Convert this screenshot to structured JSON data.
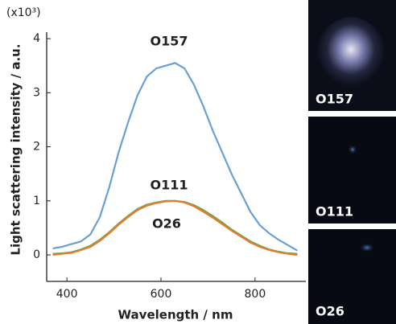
{
  "chart_data": {
    "type": "line",
    "x_label": "Wavelength / nm",
    "y_label": "Light scattering intensity / a.u.",
    "y_unit_label": "(x10³)",
    "xlim": [
      357,
      908
    ],
    "xticks": [
      400,
      600,
      800
    ],
    "ylim": [
      -0.49,
      4.12
    ],
    "yticks": [
      0,
      1,
      2,
      3,
      4
    ],
    "x": [
      370,
      390,
      410,
      430,
      450,
      470,
      490,
      510,
      530,
      550,
      570,
      590,
      610,
      630,
      650,
      670,
      690,
      710,
      730,
      750,
      770,
      790,
      810,
      830,
      850,
      870,
      890
    ],
    "series": [
      {
        "name": "O157",
        "color": "#6a9fd4",
        "values": [
          0.12,
          0.15,
          0.2,
          0.25,
          0.38,
          0.7,
          1.25,
          1.9,
          2.45,
          2.95,
          3.3,
          3.45,
          3.5,
          3.55,
          3.45,
          3.15,
          2.75,
          2.3,
          1.9,
          1.5,
          1.15,
          0.8,
          0.55,
          0.4,
          0.28,
          0.18,
          0.08
        ]
      },
      {
        "name": "O111",
        "color": "#6aa84f",
        "values": [
          0.02,
          0.03,
          0.05,
          0.1,
          0.17,
          0.28,
          0.42,
          0.58,
          0.72,
          0.85,
          0.93,
          0.97,
          1.0,
          1.0,
          0.98,
          0.92,
          0.83,
          0.72,
          0.6,
          0.47,
          0.36,
          0.25,
          0.17,
          0.1,
          0.06,
          0.03,
          0.02
        ]
      },
      {
        "name": "O26",
        "color": "#e8792e",
        "values": [
          0.0,
          0.02,
          0.04,
          0.09,
          0.15,
          0.26,
          0.4,
          0.56,
          0.7,
          0.83,
          0.91,
          0.96,
          0.99,
          1.0,
          0.97,
          0.9,
          0.8,
          0.69,
          0.57,
          0.45,
          0.34,
          0.23,
          0.15,
          0.09,
          0.05,
          0.02,
          0.0
        ]
      }
    ]
  },
  "image_panels": [
    "O157",
    "O111",
    "O26"
  ]
}
